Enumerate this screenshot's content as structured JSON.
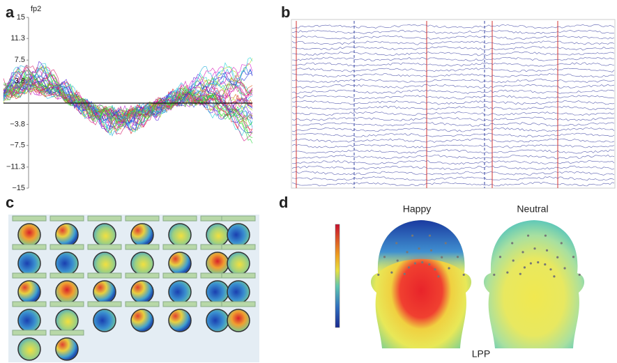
{
  "panels": [
    {
      "label": "a",
      "axis_label": "fp2",
      "ylim": [
        -15,
        15
      ],
      "yticks": [
        15,
        11.3,
        7.5,
        3.8,
        {
          "value": -3.8,
          "label": "−3.8"
        },
        {
          "value": -7.5,
          "label": "−7.5"
        },
        {
          "value": -11.3,
          "label": "−11.3"
        },
        {
          "value": -15,
          "label": "−15"
        }
      ]
    },
    {
      "label": "b"
    },
    {
      "label": "c"
    },
    {
      "label": "d",
      "conditions": [
        "Happy",
        "Neutral"
      ],
      "caption": "LPP"
    }
  ]
}
